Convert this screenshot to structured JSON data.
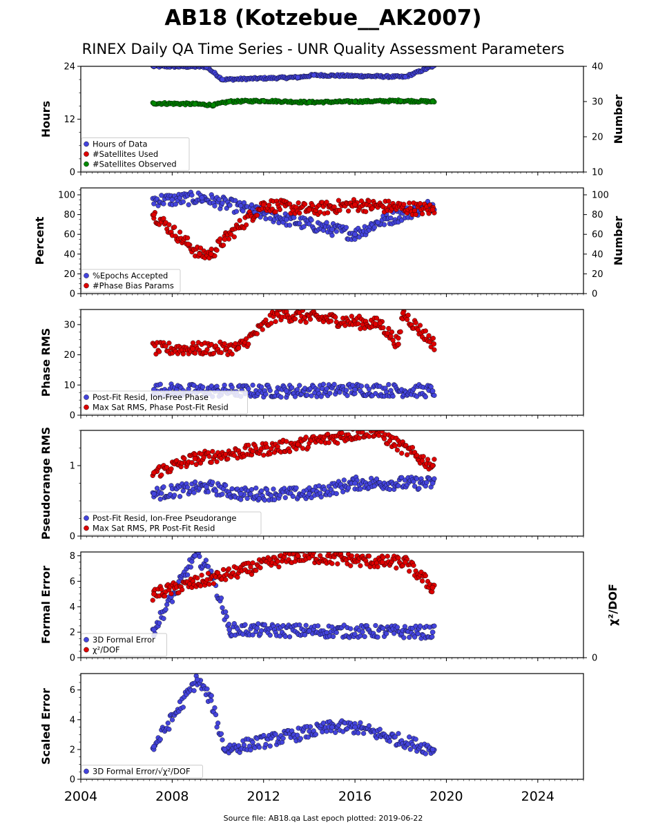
{
  "title": "AB18 (Kotzebue__AK2007)",
  "subtitle": "RINEX Daily QA Time Series - UNR Quality Assessment Parameters",
  "footer": "Source file: AB18.qa Last epoch plotted: 2019-06-22",
  "chart_data": {
    "type": "scatter",
    "x_axis": {
      "xlim": [
        2004,
        2026
      ],
      "ticks": [
        2004,
        2008,
        2012,
        2016,
        2020,
        2024
      ],
      "data_start": 2007.15,
      "data_end": 2019.47
    },
    "panels": [
      {
        "id": "hours",
        "ylabel": "Hours",
        "ylim": [
          0,
          24
        ],
        "yticks": [
          0,
          12,
          24
        ],
        "ylabel_right": "Number",
        "ylim_right": [
          10,
          40
        ],
        "yticks_right": [
          10,
          20,
          30,
          40
        ],
        "legend": [
          "Hours of Data",
          "#Satellites Used",
          "#Satellites Observed"
        ],
        "series": [
          {
            "name": "Hours of Data",
            "color": "#4444dd",
            "axis": "left",
            "samples": [
              [
                2007.2,
                24.0
              ],
              [
                2009.5,
                23.9
              ],
              [
                2010.2,
                21.0
              ],
              [
                2013.5,
                21.5
              ],
              [
                2014.2,
                22.0
              ],
              [
                2018.2,
                21.6
              ],
              [
                2019.4,
                24.0
              ]
            ]
          },
          {
            "name": "#Satellites Used",
            "color": "#dd0000",
            "axis": "right",
            "samples": []
          },
          {
            "name": "#Satellites Observed",
            "color": "#008800",
            "axis": "right",
            "samples": [
              [
                2007.2,
                29.5
              ],
              [
                2009.0,
                29.3
              ],
              [
                2009.8,
                29.0
              ],
              [
                2010.5,
                30.0
              ],
              [
                2012.0,
                30.2
              ],
              [
                2014.0,
                29.8
              ],
              [
                2016.0,
                30.0
              ],
              [
                2018.0,
                30.2
              ],
              [
                2019.4,
                30.0
              ]
            ]
          }
        ]
      },
      {
        "id": "percent",
        "ylabel": "Percent",
        "ylim": [
          0,
          107
        ],
        "yticks": [
          0,
          20,
          40,
          60,
          80,
          100
        ],
        "ylabel_right": "Number",
        "ylim_right": [
          0,
          107
        ],
        "yticks_right": [
          0,
          20,
          40,
          60,
          80,
          100
        ],
        "legend": [
          "%Epochs Accepted",
          "#Phase Bias Params"
        ],
        "series": [
          {
            "name": "%Epochs Accepted",
            "color": "#4444dd",
            "axis": "left",
            "samples": [
              [
                2008.0,
                95
              ],
              [
                2009.3,
                97
              ],
              [
                2013.0,
                75
              ],
              [
                2015.0,
                65
              ],
              [
                2016.0,
                60
              ],
              [
                2017.0,
                72
              ],
              [
                2019.4,
                90
              ]
            ]
          },
          {
            "name": "#Phase Bias Params",
            "color": "#dd0000",
            "axis": "right",
            "samples": [
              [
                2007.2,
                80
              ],
              [
                2008.7,
                50
              ],
              [
                2009.2,
                40
              ],
              [
                2009.7,
                40
              ],
              [
                2010.3,
                55
              ],
              [
                2012.0,
                90
              ],
              [
                2014.0,
                85
              ],
              [
                2016.0,
                90
              ],
              [
                2019.4,
                85
              ]
            ]
          }
        ]
      },
      {
        "id": "phase",
        "ylabel": "Phase RMS",
        "ylim": [
          0,
          35
        ],
        "yticks": [
          0,
          10,
          20,
          30
        ],
        "legend": [
          "Post-Fit Resid, Ion-Free Phase",
          "Max Sat RMS, Phase Post-Fit Resid"
        ],
        "series": [
          {
            "name": "Post-Fit Resid, Ion-Free Phase",
            "color": "#4444dd",
            "samples": [
              [
                2007.2,
                8.5
              ],
              [
                2010.0,
                8.0
              ],
              [
                2013.0,
                8.0
              ],
              [
                2016.0,
                8.5
              ],
              [
                2019.4,
                8.0
              ]
            ]
          },
          {
            "name": "Max Sat RMS, Phase Post-Fit Resid",
            "color": "#dd0000",
            "samples": [
              [
                2012.6,
                33.5
              ],
              [
                2016.9,
                30.2
              ],
              [
                2017.1,
                30.4
              ],
              [
                2018.1,
                33.8
              ],
              [
                2017.9,
                23.5
              ],
              [
                2019.45,
                23.6
              ],
              [
                2008.9,
                22.0
              ],
              [
                2010.9,
                22.2
              ]
            ]
          }
        ]
      },
      {
        "id": "pseudorange",
        "ylabel": "Pseudorange RMS",
        "ylim": [
          0,
          1.5
        ],
        "yticks": [
          0,
          1
        ],
        "legend": [
          "Post-Fit Resid, Ion-Free Pseudorange",
          "Max Sat RMS, PR Post-Fit Resid"
        ],
        "series": [
          {
            "name": "Post-Fit Resid, Ion-Free Pseudorange",
            "color": "#4444dd",
            "samples": [
              [
                2007.2,
                0.6
              ],
              [
                2009.5,
                0.7
              ],
              [
                2011.0,
                0.6
              ],
              [
                2014.0,
                0.6
              ],
              [
                2016.0,
                0.75
              ],
              [
                2019.4,
                0.75
              ]
            ]
          },
          {
            "name": "Max Sat RMS, PR Post-Fit Resid",
            "color": "#dd0000",
            "samples": [
              [
                2007.2,
                0.9
              ],
              [
                2009.0,
                1.1
              ],
              [
                2013.5,
                1.3
              ],
              [
                2016.8,
                1.5
              ],
              [
                2019.4,
                1.0
              ]
            ]
          }
        ]
      },
      {
        "id": "formal",
        "ylabel": "Formal Error",
        "ylim": [
          0,
          8.3
        ],
        "yticks": [
          0,
          2,
          4,
          6,
          8
        ],
        "ylabel_right": "χ²/DOF",
        "yticks_right": [
          0
        ],
        "legend": [
          "3D Formal Error",
          "χ²/DOF"
        ],
        "series": [
          {
            "name": "3D Formal Error",
            "color": "#4444dd",
            "samples": [
              [
                2007.2,
                2.2
              ],
              [
                2009.0,
                8.0
              ],
              [
                2009.7,
                6.8
              ],
              [
                2010.5,
                2.2
              ],
              [
                2014.0,
                2.1
              ],
              [
                2019.4,
                2.0
              ]
            ]
          },
          {
            "name": "χ²/DOF",
            "color": "#dd0000",
            "samples": [
              [
                2007.2,
                5.0
              ],
              [
                2013.5,
                8.0
              ],
              [
                2017.2,
                7.5
              ],
              [
                2018.2,
                7.5
              ],
              [
                2019.4,
                5.5
              ]
            ]
          }
        ]
      },
      {
        "id": "scaled",
        "ylabel": "Scaled Error",
        "ylim": [
          0,
          7.1
        ],
        "yticks": [
          0,
          2,
          4,
          6
        ],
        "legend": [
          "3D Formal Error/√χ²/DOF"
        ],
        "series": [
          {
            "name": "3D Formal Error/√χ²/DOF",
            "color": "#4444dd",
            "samples": [
              [
                2007.2,
                2.2
              ],
              [
                2009.1,
                6.7
              ],
              [
                2009.7,
                5.3
              ],
              [
                2010.3,
                2.0
              ],
              [
                2015.0,
                3.5
              ],
              [
                2016.0,
                3.5
              ],
              [
                2019.4,
                2.0
              ]
            ]
          }
        ]
      }
    ]
  }
}
